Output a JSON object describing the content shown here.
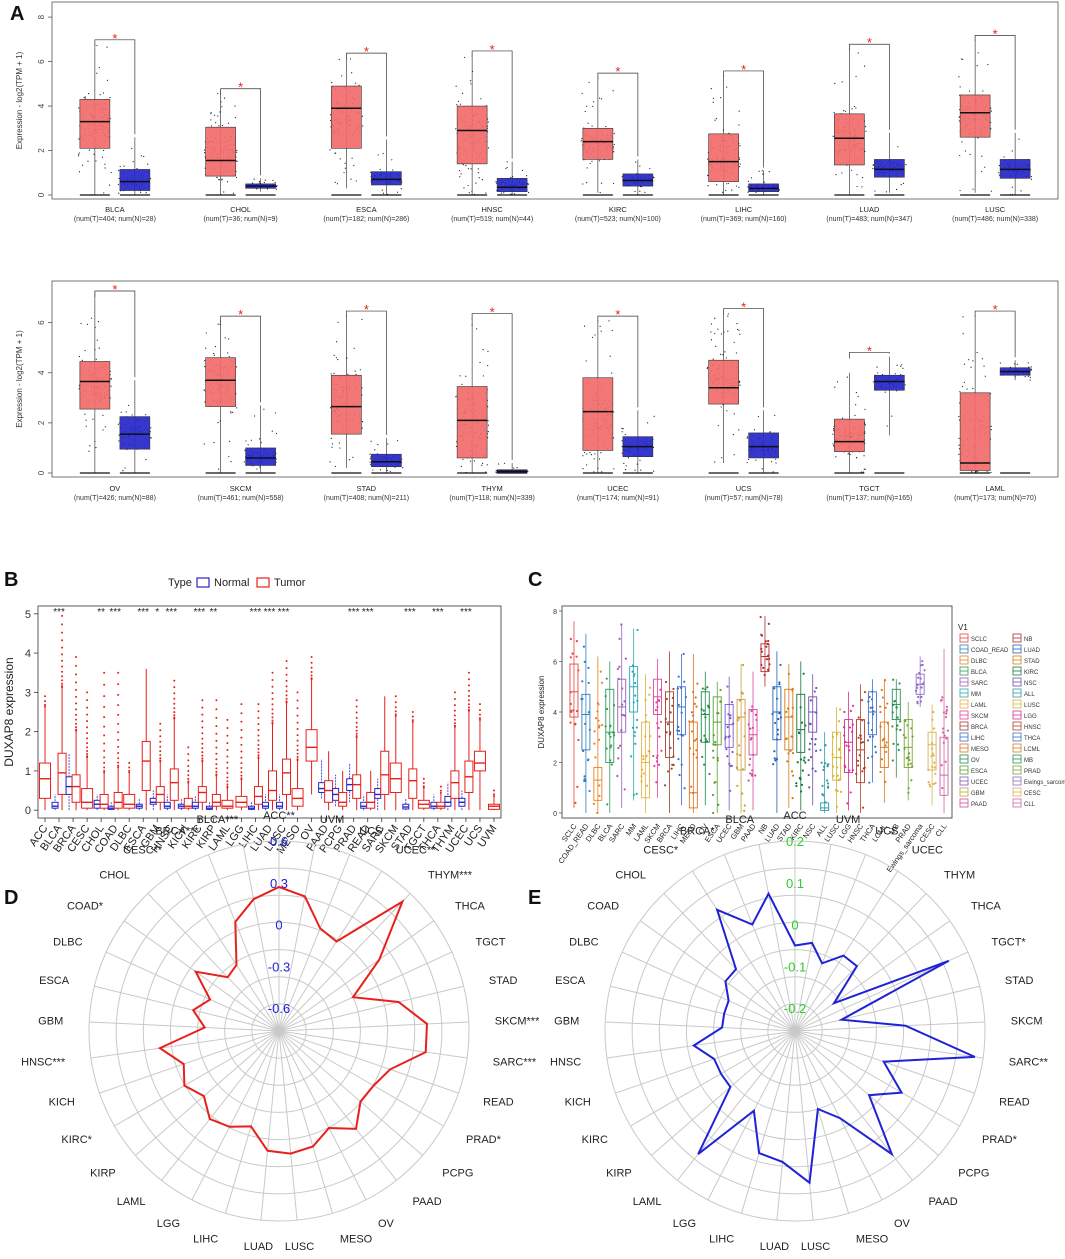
{
  "panels": {
    "A": "A",
    "B": "B",
    "C": "C",
    "D": "D",
    "E": "E"
  },
  "colors": {
    "tumor": "#f26b6b",
    "normal": "#2426c9",
    "red": "#e8201c",
    "blue": "#1f22d6",
    "green": "#2ecc2e"
  },
  "chart_data": [
    {
      "id": "A-top",
      "type": "box",
      "ylabel": "Expression - log2(TPM + 1)",
      "ylim": [
        0,
        8.5
      ],
      "yticks": [
        0,
        2,
        4,
        6,
        8
      ],
      "groups": [
        {
          "name": "BLCA",
          "sub": "(num(T)=404; num(N)=28)",
          "tumor": [
            0,
            2.1,
            3.3,
            4.3,
            6.8
          ],
          "normal": [
            0,
            0.2,
            0.6,
            1.15,
            2.6
          ],
          "sig": "*"
        },
        {
          "name": "CHOL",
          "sub": "(num(T)=36; num(N)=9)",
          "tumor": [
            0,
            0.85,
            1.55,
            3.05,
            4.6
          ],
          "normal": [
            0.15,
            0.3,
            0.4,
            0.5,
            0.75
          ],
          "sig": "*"
        },
        {
          "name": "ESCA",
          "sub": "(num(T)=182; num(N)=286)",
          "tumor": [
            0.3,
            2.1,
            3.9,
            4.9,
            6.2
          ],
          "normal": [
            0,
            0.45,
            0.7,
            1.05,
            2.5
          ],
          "sig": "*"
        },
        {
          "name": "HNSC",
          "sub": "(num(T)=519; num(N)=44)",
          "tumor": [
            0,
            1.4,
            2.9,
            4.0,
            6.3
          ],
          "normal": [
            0,
            0.15,
            0.35,
            0.75,
            1.5
          ],
          "sig": "*"
        },
        {
          "name": "KIRC",
          "sub": "(num(T)=523; num(N)=100)",
          "tumor": [
            0.1,
            1.6,
            2.4,
            3.0,
            5.3
          ],
          "normal": [
            0,
            0.4,
            0.65,
            0.95,
            1.6
          ],
          "sig": "*"
        },
        {
          "name": "LIHC",
          "sub": "(num(T)=369; num(N)=160)",
          "tumor": [
            0,
            0.6,
            1.5,
            2.75,
            5.4
          ],
          "normal": [
            0,
            0.15,
            0.3,
            0.5,
            1.1
          ],
          "sig": "*"
        },
        {
          "name": "LUAD",
          "sub": "(num(T)=483; num(N)=347)",
          "tumor": [
            0,
            1.35,
            2.55,
            3.65,
            6.6
          ],
          "normal": [
            0.1,
            0.8,
            1.15,
            1.6,
            2.8
          ],
          "sig": "*"
        },
        {
          "name": "LUSC",
          "sub": "(num(T)=486; num(N)=338)",
          "tumor": [
            0.1,
            2.6,
            3.7,
            4.5,
            7.0
          ],
          "normal": [
            0,
            0.75,
            1.15,
            1.6,
            2.8
          ],
          "sig": "*"
        }
      ]
    },
    {
      "id": "A-bottom",
      "type": "box",
      "ylabel": "Expression - log2(TPM + 1)",
      "ylim": [
        0,
        7.5
      ],
      "yticks": [
        0,
        2,
        4,
        6
      ],
      "groups": [
        {
          "name": "OV",
          "sub": "(num(T)=426; num(N)=88)",
          "tumor": [
            0,
            2.55,
            3.65,
            4.45,
            7.2
          ],
          "normal": [
            0,
            0.95,
            1.55,
            2.25,
            3.7
          ],
          "sig": "*"
        },
        {
          "name": "SKCM",
          "sub": "(num(T)=461; num(N)=558)",
          "tumor": [
            0,
            2.65,
            3.7,
            4.6,
            6.1
          ],
          "normal": [
            0,
            0.3,
            0.6,
            1.0,
            2.7
          ],
          "sig": "*"
        },
        {
          "name": "STAD",
          "sub": "(num(T)=408; num(N)=211)",
          "tumor": [
            0.2,
            1.55,
            2.65,
            3.9,
            6.3
          ],
          "normal": [
            0,
            0.25,
            0.45,
            0.75,
            1.4
          ],
          "sig": "*"
        },
        {
          "name": "THYM",
          "sub": "(num(T)=118; num(N)=339)",
          "tumor": [
            0,
            0.6,
            2.1,
            3.45,
            6.2
          ],
          "normal": [
            0,
            0.02,
            0.07,
            0.13,
            0.4
          ],
          "sig": "*"
        },
        {
          "name": "UCEC",
          "sub": "(num(T)=174; num(N)=91)",
          "tumor": [
            0,
            0.9,
            2.45,
            3.8,
            6.1
          ],
          "normal": [
            0,
            0.65,
            1.05,
            1.45,
            2.5
          ],
          "sig": "*"
        },
        {
          "name": "UCS",
          "sub": "(num(T)=57; num(N)=78)",
          "tumor": [
            0.4,
            2.75,
            3.4,
            4.5,
            6.4
          ],
          "normal": [
            0,
            0.6,
            1.05,
            1.6,
            2.5
          ],
          "sig": "*"
        },
        {
          "name": "TGCT",
          "sub": "(num(T)=137; num(N)=165)",
          "tumor": [
            0,
            0.85,
            1.25,
            2.15,
            4.0
          ],
          "normal": [
            1.5,
            3.3,
            3.65,
            3.9,
            4.65
          ],
          "sig": "*"
        },
        {
          "name": "LAML",
          "sub": "(num(T)=173; num(N)=70)",
          "tumor": [
            0,
            0.1,
            0.4,
            3.2,
            6.3
          ],
          "normal": [
            3.7,
            3.9,
            4.05,
            4.2,
            4.5
          ],
          "sig": "*"
        }
      ]
    },
    {
      "id": "B",
      "type": "box",
      "ylabel": "DUXAP8 expression",
      "ylim": [
        -0.2,
        5.2
      ],
      "yticks": [
        0,
        1,
        2,
        3,
        4,
        5
      ],
      "legend": {
        "title": "Type",
        "normal": "Normal",
        "tumor": "Tumor"
      },
      "categories": [
        "ACC",
        "BLCA",
        "BRCA",
        "CESC",
        "CHOL",
        "COAD",
        "DLBC",
        "ESCA",
        "GBM",
        "HNSC",
        "KICH",
        "KIRC",
        "KIRP",
        "LAML",
        "LGG",
        "LIHC",
        "LUAD",
        "LUSC",
        "MESO",
        "OV",
        "PAAD",
        "PCPG",
        "PRAD",
        "READ",
        "SARC",
        "SKCM",
        "STAD",
        "TGCT",
        "THCA",
        "THYM",
        "UCEC",
        "UCS",
        "UVM"
      ],
      "tumor_q": [
        [
          0,
          0.3,
          0.8,
          1.2,
          2.9
        ],
        [
          0,
          0.4,
          0.95,
          1.45,
          4.95
        ],
        [
          0,
          0.2,
          0.6,
          0.9,
          3.9
        ],
        [
          0,
          0.05,
          0.2,
          0.55,
          3.0
        ],
        [
          0,
          0.05,
          0.15,
          0.4,
          3.5
        ],
        [
          0,
          0.05,
          0.2,
          0.45,
          3.5
        ],
        [
          0,
          0.05,
          0.15,
          0.4,
          1.2
        ],
        [
          0,
          0.5,
          1.25,
          1.75,
          3.6
        ],
        [
          0,
          0.2,
          0.4,
          0.6,
          2.2
        ],
        [
          0,
          0.25,
          0.7,
          1.05,
          3.3
        ],
        [
          0,
          0.05,
          0.1,
          0.3,
          1.6
        ],
        [
          0,
          0.2,
          0.45,
          0.6,
          2.8
        ],
        [
          0,
          0.1,
          0.2,
          0.4,
          2.8
        ],
        [
          0,
          0.05,
          0.1,
          0.25,
          2.3
        ],
        [
          0,
          0.08,
          0.2,
          0.35,
          2.7
        ],
        [
          0,
          0.15,
          0.35,
          0.6,
          2.7
        ],
        [
          0,
          0.25,
          0.5,
          1.0,
          3.5
        ],
        [
          0,
          0.4,
          0.95,
          1.3,
          3.8
        ],
        [
          0,
          0.1,
          0.3,
          0.55,
          3.0
        ],
        [
          0.4,
          1.25,
          1.6,
          2.05,
          3.9
        ],
        [
          0,
          0.2,
          0.5,
          0.75,
          1.5
        ],
        [
          0,
          0.1,
          0.2,
          0.45,
          1.0
        ],
        [
          0,
          0.3,
          0.65,
          0.9,
          2.8
        ],
        [
          0,
          0.05,
          0.2,
          0.45,
          1.0
        ],
        [
          0,
          0.4,
          0.9,
          1.5,
          2.9
        ],
        [
          0,
          0.45,
          0.8,
          1.2,
          2.9
        ],
        [
          0,
          0.3,
          0.75,
          1.05,
          2.5
        ],
        [
          0,
          0.05,
          0.15,
          0.25,
          0.8
        ],
        [
          0,
          0.05,
          0.1,
          0.2,
          0.6
        ],
        [
          0,
          0.3,
          0.7,
          1.0,
          3.0
        ],
        [
          0,
          0.45,
          0.85,
          1.25,
          3.5
        ],
        [
          0,
          1.0,
          1.2,
          1.5,
          2.7
        ],
        [
          0,
          0.02,
          0.1,
          0.15,
          0.5
        ]
      ],
      "normal_q": [
        null,
        [
          0,
          0.05,
          0.1,
          0.2,
          0.4
        ],
        [
          0,
          0.4,
          0.6,
          0.85,
          1.45
        ],
        null,
        [
          0,
          0.05,
          0.15,
          0.25,
          0.4
        ],
        [
          0,
          0.02,
          0.05,
          0.1,
          0.2
        ],
        null,
        [
          0,
          0.05,
          0.1,
          0.15,
          0.3
        ],
        [
          0,
          0.15,
          0.2,
          0.3,
          0.5
        ],
        [
          0,
          0.05,
          0.1,
          0.2,
          0.4
        ],
        [
          0,
          0.05,
          0.1,
          0.15,
          0.3
        ],
        [
          0,
          0.05,
          0.1,
          0.2,
          0.35
        ],
        [
          0,
          0.02,
          0.05,
          0.1,
          0.2
        ],
        null,
        null,
        [
          0,
          0.02,
          0.05,
          0.1,
          0.2
        ],
        [
          0,
          0.05,
          0.1,
          0.2,
          0.4
        ],
        [
          0,
          0.05,
          0.1,
          0.2,
          0.4
        ],
        null,
        null,
        [
          0.3,
          0.45,
          0.55,
          0.7,
          1.3
        ],
        [
          0.1,
          0.25,
          0.4,
          0.55,
          0.9
        ],
        [
          0.2,
          0.5,
          0.65,
          0.8,
          1.2
        ],
        [
          0,
          0.05,
          0.1,
          0.2,
          0.35
        ],
        [
          0,
          0.3,
          0.4,
          0.55,
          0.8
        ],
        null,
        [
          0,
          0.03,
          0.08,
          0.15,
          0.3
        ],
        null,
        [
          0,
          0.05,
          0.1,
          0.2,
          0.4
        ],
        [
          0,
          0.1,
          0.2,
          0.35,
          0.7
        ],
        [
          0,
          0.1,
          0.2,
          0.3,
          0.5
        ],
        null,
        null
      ],
      "sig": [
        "",
        "***",
        "",
        "",
        "**",
        "***",
        "",
        "***",
        "*",
        "***",
        "",
        "***",
        "**",
        "",
        "",
        "***",
        "***",
        "***",
        "",
        "",
        "",
        "",
        "***",
        "***",
        "",
        "",
        "***",
        "",
        "***",
        "",
        "***",
        "",
        ""
      ]
    },
    {
      "id": "C",
      "type": "box",
      "ylabel": "DUXAP8 expression",
      "ylim": [
        -0.2,
        8.2
      ],
      "yticks": [
        0,
        2,
        4,
        6,
        8
      ],
      "legend_title": "V1",
      "categories": [
        "SCLC",
        "COAD_READ",
        "DLBC",
        "BLCA",
        "SARC",
        "MM",
        "LAML",
        "SKCM",
        "BRCA",
        "LIHC",
        "MESO",
        "OV",
        "ESCA",
        "UCEC",
        "GBM",
        "PAAD",
        "NB",
        "LUAD",
        "STAD",
        "KIRC",
        "NSC",
        "ALL",
        "LUSC",
        "LGG",
        "HNSC",
        "THCA",
        "LCML",
        "MB",
        "PRAD",
        "Ewings_sarcoma",
        "CESC",
        "CLL"
      ],
      "quartiles": [
        [
          0.2,
          3.8,
          4.8,
          5.9,
          7.6
        ],
        [
          0,
          2.5,
          3.9,
          4.7,
          7.1
        ],
        [
          0,
          0.5,
          1.3,
          1.8,
          6.2
        ],
        [
          0,
          2.0,
          3.2,
          4.9,
          6.0
        ],
        [
          0.2,
          3.2,
          4.2,
          5.3,
          7.5
        ],
        [
          0.5,
          4.0,
          5.0,
          5.8,
          7.3
        ],
        [
          0,
          0.6,
          2.0,
          3.6,
          5.5
        ],
        [
          0.6,
          3.9,
          4.6,
          5.3,
          6.1
        ],
        [
          0,
          2.2,
          3.6,
          4.8,
          6.4
        ],
        [
          0.3,
          3.1,
          4.2,
          5.0,
          6.3
        ],
        [
          0,
          0.2,
          0.8,
          3.6,
          6.3
        ],
        [
          0.3,
          2.8,
          3.9,
          4.8,
          5.6
        ],
        [
          0,
          2.7,
          3.6,
          4.6,
          5.2
        ],
        [
          0.1,
          2.6,
          3.5,
          4.3,
          5.4
        ],
        [
          0,
          1.7,
          3.8,
          4.5,
          5.9
        ],
        [
          0.1,
          2.3,
          3.1,
          4.1,
          5.6
        ],
        [
          5.0,
          5.6,
          6.2,
          6.7,
          7.8
        ],
        [
          0,
          2.9,
          4.0,
          5.0,
          6.4
        ],
        [
          0.2,
          2.5,
          3.8,
          4.9,
          5.9
        ],
        [
          0.1,
          2.4,
          3.3,
          4.7,
          6.0
        ],
        [
          0.3,
          3.2,
          4.0,
          4.6,
          5.5
        ],
        [
          0,
          0.1,
          0.2,
          0.4,
          3.2
        ],
        [
          0,
          1.3,
          2.2,
          3.2,
          4.2
        ],
        [
          0.1,
          1.6,
          2.8,
          3.7,
          4.8
        ],
        [
          0,
          1.2,
          2.5,
          3.7,
          5.1
        ],
        [
          1.2,
          3.1,
          4.0,
          4.8,
          5.3
        ],
        [
          0.4,
          1.8,
          2.6,
          3.6,
          5.3
        ],
        [
          1.4,
          3.7,
          4.3,
          4.9,
          5.3
        ],
        [
          0.5,
          1.8,
          2.6,
          3.7,
          4.4
        ],
        [
          4.2,
          4.7,
          5.1,
          5.5,
          6.2
        ],
        [
          0.3,
          1.7,
          2.7,
          3.2,
          4.3
        ],
        [
          0,
          0.7,
          1.5,
          3.0,
          6.5
        ]
      ]
    },
    {
      "id": "D",
      "type": "radar",
      "rlim": [
        -0.6,
        0.6
      ],
      "rticks": [
        -0.6,
        -0.3,
        0,
        0.3,
        0.6
      ],
      "color": "red",
      "labels": [
        "ACC**",
        "UVM",
        "UCS",
        "UCEC**",
        "THYM***",
        "THCA",
        "TGCT",
        "STAD",
        "SKCM***",
        "SARC***",
        "READ",
        "PRAD*",
        "PCPG",
        "PAAD",
        "OV",
        "MESO",
        "LUSC",
        "LUAD",
        "LIHC",
        "LGG",
        "LAML",
        "KIRP",
        "KIRC*",
        "KICH",
        "HNSC***",
        "GBM",
        "ESCA",
        "DLBC",
        "COAD*",
        "CHOL",
        "CESC**",
        "BRCA***",
        "BLCA***"
      ],
      "values": [
        0.27,
        0.22,
        0.03,
        0.0,
        0.52,
        0.12,
        -0.18,
        0.12,
        0.3,
        0.3,
        0.08,
        0.02,
        0.01,
        0.13,
        0.02,
        0.1,
        0.12,
        0.1,
        -0.05,
        0.01,
        0.04,
        -0.05,
        0.02,
        -0.04,
        0.1,
        -0.23,
        -0.13,
        -0.22,
        -0.03,
        -0.23,
        -0.2,
        0.08,
        0.2
      ]
    },
    {
      "id": "E",
      "type": "radar",
      "rlim": [
        -0.2,
        0.2
      ],
      "rticks": [
        -0.2,
        -0.1,
        0,
        0.1,
        0.2
      ],
      "color": "blue",
      "labels": [
        "ACC",
        "UVM",
        "UCS",
        "UCEC",
        "THYM",
        "THCA",
        "TGCT*",
        "STAD",
        "SKCM",
        "SARC**",
        "READ",
        "PRAD*",
        "PCPG",
        "PAAD",
        "OV",
        "MESO",
        "LUSC",
        "LUAD",
        "LIHC",
        "LGG",
        "LAML",
        "KIRP",
        "KIRC",
        "KICH",
        "HNSC",
        "GBM",
        "ESCA",
        "DLBC",
        "COAD",
        "CHOL",
        "CESC*",
        "BRCA*",
        "BLCA"
      ],
      "values": [
        -0.05,
        -0.04,
        -0.08,
        -0.04,
        -0.04,
        -0.14,
        0.15,
        -0.14,
        0.01,
        0.18,
        -0.03,
        0.04,
        -0.02,
        0.12,
        -0.02,
        -0.06,
        0.11,
        0.06,
        0.05,
        -0.04,
        0.12,
        -0.05,
        -0.05,
        -0.05,
        -0.01,
        -0.08,
        -0.08,
        -0.08,
        -0.05,
        -0.05,
        0.09,
        0.02,
        0.08
      ]
    }
  ]
}
